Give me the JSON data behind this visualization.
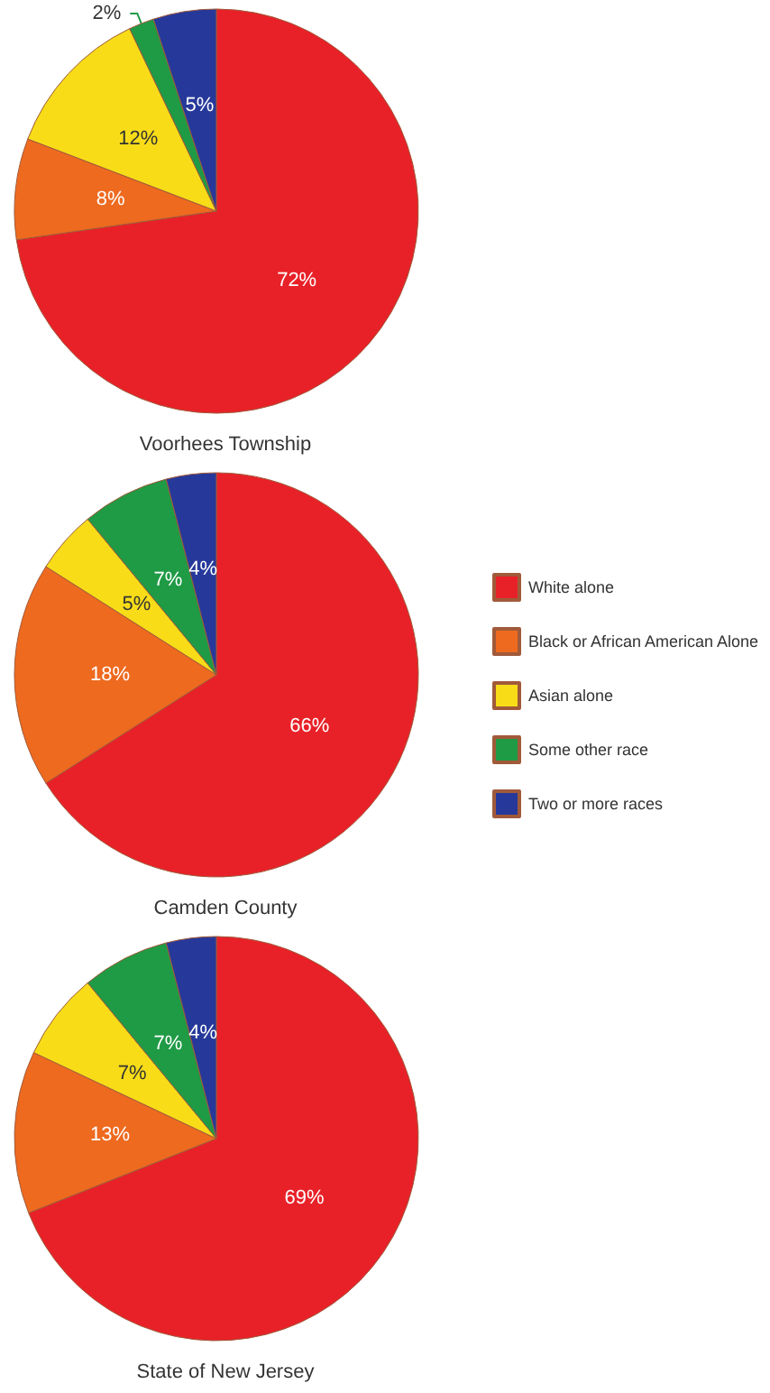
{
  "chart_data": [
    {
      "type": "pie",
      "title": "Voorhees Township",
      "categories": [
        null,
        null,
        null,
        null,
        null
      ],
      "values": [
        72,
        8,
        12,
        2,
        5
      ],
      "colors": [
        "#e82128",
        "#ee6a1f",
        "#f8dc18",
        "#1f9a45",
        "#26399a"
      ],
      "value_labels": [
        "72%",
        "8%",
        "12%",
        "2%",
        "5%"
      ]
    },
    {
      "type": "pie",
      "title": "Camden County",
      "categories": [
        "White alone",
        "Black or African American Alone",
        "Asian alone",
        "Some other race",
        "Two or more races"
      ],
      "values": [
        66,
        18,
        5,
        7,
        4
      ],
      "colors": [
        "#e82128",
        "#ee6a1f",
        "#f8dc18",
        "#1f9a45",
        "#26399a"
      ],
      "value_labels": [
        "66%",
        "18%",
        "5%",
        "7%",
        "4%"
      ],
      "legend": "right"
    },
    {
      "type": "pie",
      "title": "State of New Jersey",
      "categories": [
        null,
        null,
        null,
        null,
        null
      ],
      "values": [
        69,
        13,
        7,
        7,
        4
      ],
      "colors": [
        "#e82128",
        "#ee6a1f",
        "#f8dc18",
        "#1f9a45",
        "#26399a"
      ],
      "value_labels": [
        "69%",
        "13%",
        "7%",
        "7%",
        "4%"
      ]
    }
  ]
}
